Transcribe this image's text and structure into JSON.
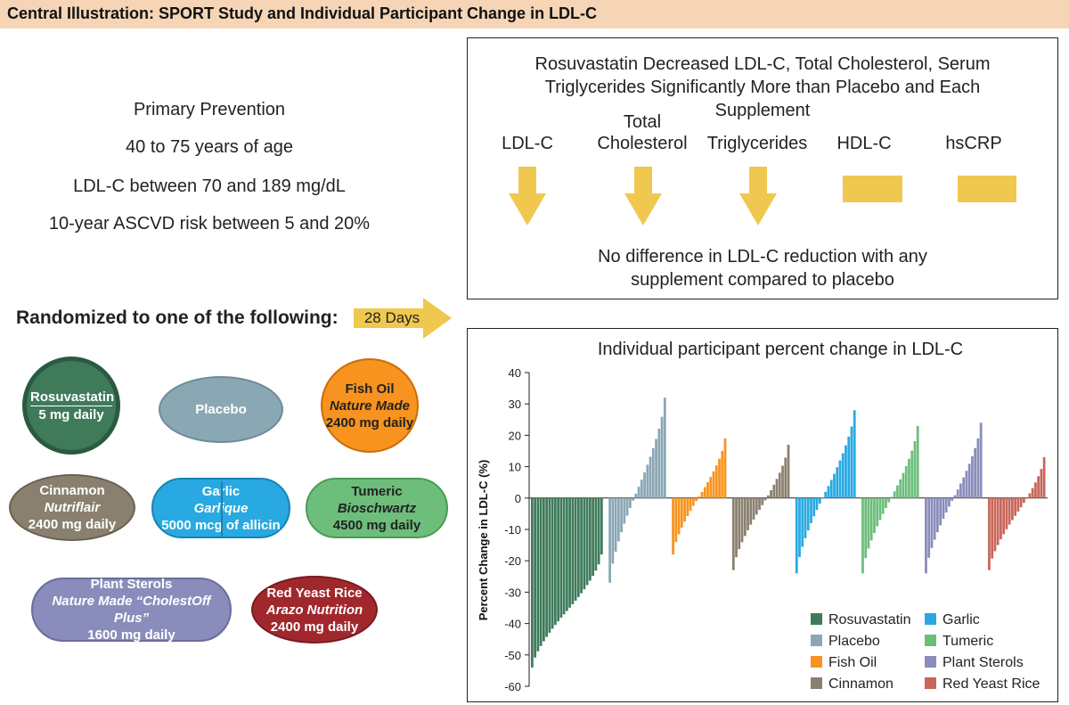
{
  "title": "Central Illustration: SPORT Study and Individual Participant Change in LDL-C",
  "criteria": [
    "Primary Prevention",
    "40 to 75 years of age",
    "LDL-C between 70 and 189 mg/dL",
    "10-year ASCVD risk between 5 and 20%"
  ],
  "randomized_label": "Randomized to one of the following:",
  "duration_label": "28 Days",
  "arms": [
    {
      "name": "Rosuvastatin",
      "brand": "",
      "dose": "5 mg daily",
      "color": "#3f7b5b"
    },
    {
      "name": "Placebo",
      "brand": "",
      "dose": "",
      "color": "#8aa7b4"
    },
    {
      "name": "Fish Oil",
      "brand": "Nature Made",
      "dose": "2400 mg daily",
      "color": "#f7931e"
    },
    {
      "name": "Cinnamon",
      "brand": "Nutriflair",
      "dose": "2400 mg daily",
      "color": "#8a8070"
    },
    {
      "name": "Garlic",
      "brand": "Garlique",
      "dose": "5000 mcg of allicin",
      "color": "#29a9e1"
    },
    {
      "name": "Tumeric",
      "brand": "Bioschwartz",
      "dose": "4500 mg daily",
      "color": "#6dbd7b"
    },
    {
      "name": "Plant Sterols",
      "brand": "Nature Made “CholestOff Plus”",
      "dose": "1600 mg daily",
      "color": "#8a8dbb"
    },
    {
      "name": "Red Yeast Rice",
      "brand": "Arazo Nutrition",
      "dose": "2400 mg daily",
      "color": "#a0282d"
    }
  ],
  "results": {
    "headline": "Rosuvastatin Decreased LDL-C, Total Cholesterol, Serum Triglycerides Significantly More than Placebo and Each Supplement",
    "indicators": [
      {
        "label": "LDL-C",
        "direction": "down"
      },
      {
        "label": "Total Cholesterol",
        "direction": "down"
      },
      {
        "label": "Triglycerides",
        "direction": "down"
      },
      {
        "label": "HDL-C",
        "direction": "flat"
      },
      {
        "label": "hsCRP",
        "direction": "flat"
      }
    ],
    "indicator_color": "#f0c850",
    "footnote": "No difference in LDL-C reduction with any supplement compared to placebo"
  },
  "chart_data": {
    "type": "bar",
    "title": "Individual participant percent change in LDL-C",
    "ylabel": "Percent Change in LDL-C (%)",
    "xlabel": "",
    "ylim": [
      -60,
      40
    ],
    "yticks": [
      40,
      30,
      20,
      10,
      0,
      -10,
      -20,
      -30,
      -40,
      -50,
      -60
    ],
    "grid": false,
    "legend_position": "bottom-right",
    "series": [
      {
        "name": "Rosuvastatin",
        "color": "#3f7b5b",
        "min": -54,
        "max": -18,
        "n": 25
      },
      {
        "name": "Placebo",
        "color": "#8aa7b4",
        "min": -27,
        "max": 32,
        "n": 20
      },
      {
        "name": "Fish Oil",
        "color": "#f7931e",
        "min": -18,
        "max": 19,
        "n": 19
      },
      {
        "name": "Cinnamon",
        "color": "#8a8070",
        "min": -23,
        "max": 17,
        "n": 20
      },
      {
        "name": "Garlic",
        "color": "#29a9e1",
        "min": -24,
        "max": 28,
        "n": 21
      },
      {
        "name": "Tumeric",
        "color": "#6dbd7b",
        "min": -24,
        "max": 23,
        "n": 20
      },
      {
        "name": "Plant Sterols",
        "color": "#8a8dbb",
        "min": -24,
        "max": 24,
        "n": 20
      },
      {
        "name": "Red Yeast Rice",
        "color": "#c8675a",
        "min": -23,
        "max": 13,
        "n": 20
      }
    ]
  }
}
